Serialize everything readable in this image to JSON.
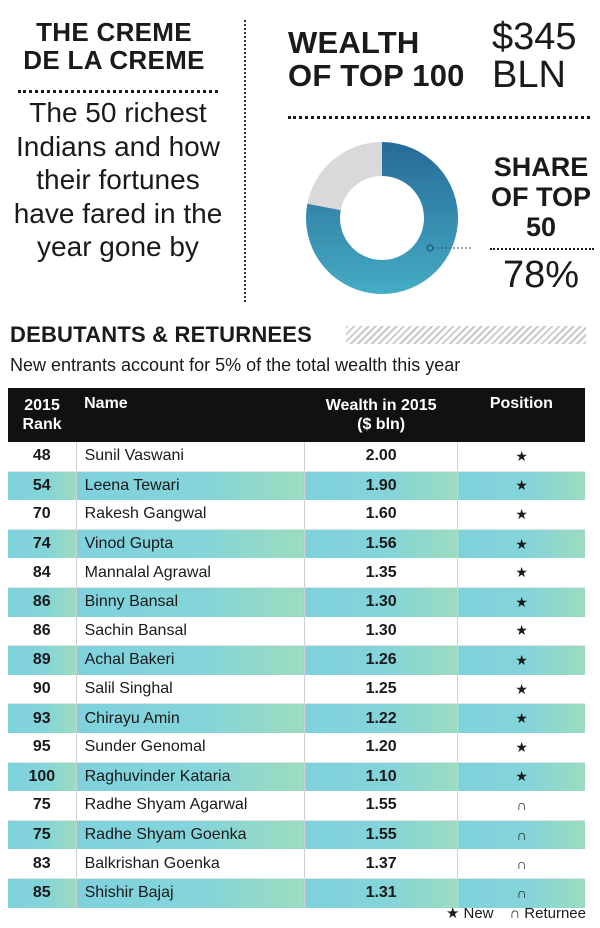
{
  "header": {
    "title_line1": "THE CREME",
    "title_line2": "DE LA CREME",
    "intro": "The 50 richest Indians and how their fortunes have fared in the year gone by"
  },
  "wealth": {
    "label_line1": "WEALTH",
    "label_line2": "OF TOP 100",
    "value_line1": "$345",
    "value_line2": "BLN"
  },
  "share": {
    "label_line1": "SHARE",
    "label_line2": "OF TOP",
    "label_line3": "50",
    "value": "78%",
    "fraction": 0.78
  },
  "colors": {
    "donut_main": "#2b7aa6",
    "donut_rest": "#d9d9dc",
    "row_accent": "#84d4d9"
  },
  "section": {
    "title": "DEBUTANTS & RETURNEES",
    "subtitle": "New entrants account for 5% of the total wealth this year"
  },
  "table": {
    "headers": {
      "rank_line1": "2015",
      "rank_line2": "Rank",
      "name": "Name",
      "wealth_line1": "Wealth in 2015",
      "wealth_line2": "($ bln)",
      "position": "Position"
    },
    "rows": [
      {
        "rank": "48",
        "name": "Sunil Vaswani",
        "wealth": "2.00",
        "position": "★"
      },
      {
        "rank": "54",
        "name": "Leena Tewari",
        "wealth": "1.90",
        "position": "★"
      },
      {
        "rank": "70",
        "name": "Rakesh Gangwal",
        "wealth": "1.60",
        "position": "★"
      },
      {
        "rank": "74",
        "name": "Vinod Gupta",
        "wealth": "1.56",
        "position": "★"
      },
      {
        "rank": "84",
        "name": "Mannalal Agrawal",
        "wealth": "1.35",
        "position": "★"
      },
      {
        "rank": "86",
        "name": "Binny Bansal",
        "wealth": "1.30",
        "position": "★"
      },
      {
        "rank": "86",
        "name": "Sachin Bansal",
        "wealth": "1.30",
        "position": "★"
      },
      {
        "rank": "89",
        "name": "Achal Bakeri",
        "wealth": "1.26",
        "position": "★"
      },
      {
        "rank": "90",
        "name": "Salil Singhal",
        "wealth": "1.25",
        "position": "★"
      },
      {
        "rank": "93",
        "name": "Chirayu Amin",
        "wealth": "1.22",
        "position": "★"
      },
      {
        "rank": "95",
        "name": "Sunder Genomal",
        "wealth": "1.20",
        "position": "★"
      },
      {
        "rank": "100",
        "name": "Raghuvinder Kataria",
        "wealth": "1.10",
        "position": "★"
      },
      {
        "rank": "75",
        "name": "Radhe Shyam Agarwal",
        "wealth": "1.55",
        "position": "∩"
      },
      {
        "rank": "75",
        "name": "Radhe Shyam Goenka",
        "wealth": "1.55",
        "position": "∩"
      },
      {
        "rank": "83",
        "name": "Balkrishan Goenka",
        "wealth": "1.37",
        "position": "∩"
      },
      {
        "rank": "85",
        "name": "Shishir Bajaj",
        "wealth": "1.31",
        "position": "∩"
      }
    ]
  },
  "legend": {
    "new_symbol": "★",
    "new_label": "New",
    "returnee_symbol": "∩",
    "returnee_label": "Returnee"
  }
}
